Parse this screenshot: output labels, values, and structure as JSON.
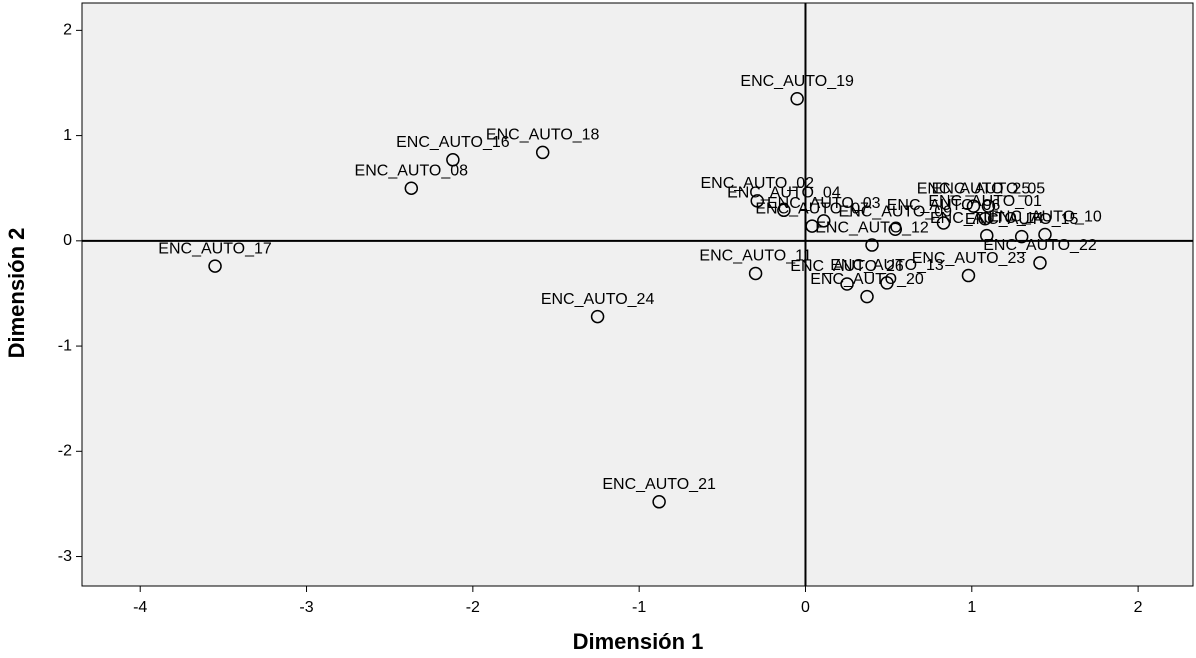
{
  "chart_data": {
    "type": "scatter",
    "x_label": "Dimensión 1",
    "y_label": "Dimensión 2",
    "labels": [
      "ENC_AUTO_19",
      "ENC_AUTO_16",
      "ENC_AUTO_18",
      "ENC_AUTO_08",
      "ENC_AUTO_17",
      "ENC_AUTO_21",
      "ENC_AUTO_24",
      "ENC_AUTO_11",
      "ENC_AUTO_02",
      "ENC_AUTO_04",
      "ENC_AUTO_07",
      "ENC_AUTO_03",
      "ENC_AUTO_12",
      "ENC_AUTO_26",
      "ENC_AUTO_13",
      "ENC_AUTO_20",
      "ENC_AUTO_23",
      "ENC_AUTO_22",
      "ENC_AUTO_10",
      "ENC_AUTO_15",
      "ENC_AUTO_14",
      "ENC_AUTO_01",
      "ENC_AUTO_05",
      "ENC_AUTO_25",
      "ENC_AUTO_06",
      "ENC_AUTO_09"
    ],
    "x": [
      -0.05,
      -2.12,
      -1.58,
      -2.37,
      -3.55,
      -0.88,
      -1.25,
      -0.3,
      -0.29,
      -0.13,
      0.04,
      0.11,
      0.4,
      0.25,
      0.49,
      0.37,
      0.98,
      1.41,
      1.44,
      1.3,
      1.09,
      1.08,
      1.1,
      1.01,
      0.83,
      0.54
    ],
    "values": [
      1.35,
      0.77,
      0.84,
      0.5,
      -0.24,
      -2.48,
      -0.72,
      -0.31,
      0.38,
      0.29,
      0.14,
      0.19,
      -0.04,
      -0.41,
      -0.4,
      -0.53,
      -0.33,
      -0.21,
      0.06,
      0.04,
      0.05,
      0.21,
      0.33,
      0.33,
      0.17,
      0.11
    ],
    "xlim": [
      -4.35,
      2.33
    ],
    "ylim": [
      -3.28,
      2.26
    ],
    "xticks": [
      -4,
      -3,
      -2,
      -1,
      0,
      1,
      2
    ],
    "yticks": [
      -3,
      -2,
      -1,
      0,
      1,
      2
    ],
    "reference_lines": true
  }
}
